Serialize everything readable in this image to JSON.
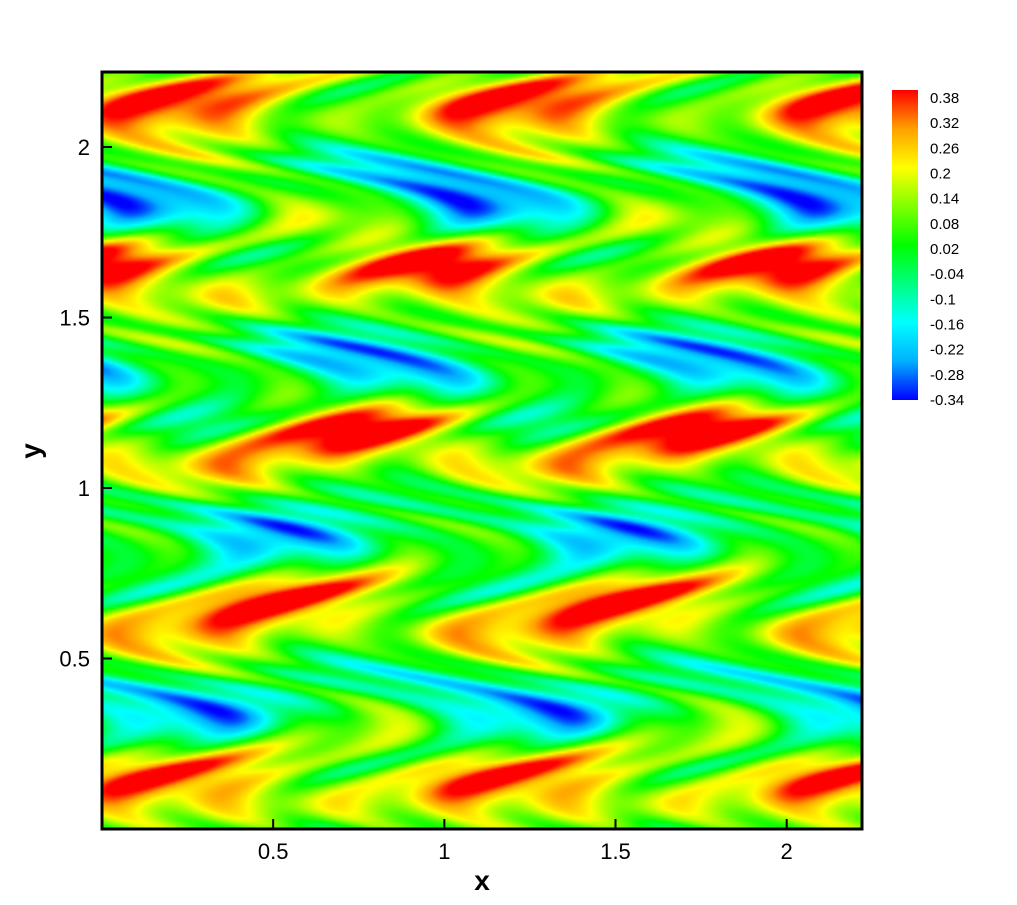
{
  "chart_data": {
    "type": "heatmap",
    "title": "",
    "xlabel": "x",
    "ylabel": "y",
    "xlim": [
      0,
      2.22
    ],
    "ylim": [
      0,
      2.22
    ],
    "x_ticks": [
      {
        "value": 0.5,
        "label": "0.5"
      },
      {
        "value": 1,
        "label": "1"
      },
      {
        "value": 1.5,
        "label": "1.5"
      },
      {
        "value": 2,
        "label": "2"
      }
    ],
    "y_ticks": [
      {
        "value": 0.5,
        "label": "0.5"
      },
      {
        "value": 1,
        "label": "1"
      },
      {
        "value": 1.5,
        "label": "1.5"
      },
      {
        "value": 2,
        "label": "2"
      }
    ],
    "colorbar": {
      "range": [
        -0.34,
        0.38
      ],
      "levels": [
        "0.38",
        "0.32",
        "0.26",
        "0.2",
        "0.14",
        "0.08",
        "0.02",
        "-0.04",
        "-0.1",
        "-0.16",
        "-0.22",
        "-0.28",
        "-0.34"
      ],
      "colors": [
        "#0000ff",
        "#00b0ff",
        "#00ffff",
        "#00ff80",
        "#00ff00",
        "#80ff00",
        "#ffff00",
        "#ffa000",
        "#ff0000"
      ]
    },
    "field": {
      "description_free": true,
      "period_x": 1.0,
      "period_y": 1.0,
      "max_value": 0.38,
      "min_value": -0.34
    },
    "grid": false,
    "legend": "colorbar right"
  }
}
